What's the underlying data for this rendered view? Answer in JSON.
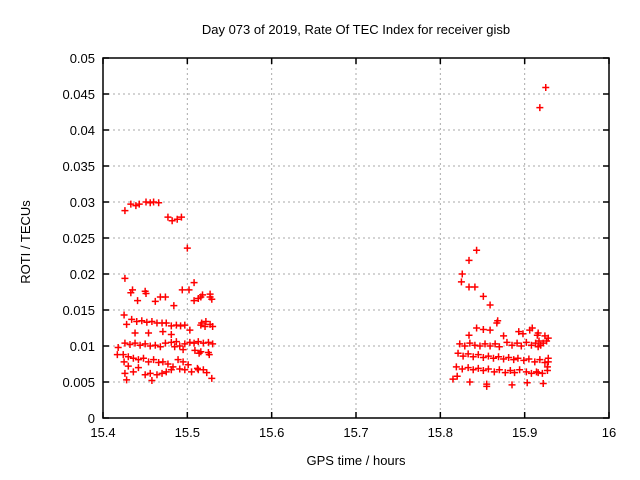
{
  "chart_data": {
    "type": "scatter",
    "title": "Day 073 of 2019, Rate Of TEC Index for receiver gisb",
    "xlabel": "GPS time / hours",
    "ylabel": "ROTI / TECUs",
    "xlim": [
      15.4,
      16
    ],
    "ylim": [
      0,
      0.05
    ],
    "xtick_values": [
      15.4,
      15.5,
      15.6,
      15.7,
      15.8,
      15.9,
      16
    ],
    "xtick_labels": [
      "15.4",
      "15.5",
      "15.6",
      "15.7",
      "15.8",
      "15.9",
      "16"
    ],
    "ytick_values": [
      0,
      0.005,
      0.01,
      0.015,
      0.02,
      0.025,
      0.03,
      0.035,
      0.04,
      0.045,
      0.05
    ],
    "ytick_labels": [
      "0",
      "0.005",
      "0.01",
      "0.015",
      "0.02",
      "0.025",
      "0.03",
      "0.035",
      "0.04",
      "0.045",
      "0.05"
    ],
    "grid": true,
    "legend": "none",
    "marker": "plus",
    "series": [
      {
        "name": "ROTI",
        "color": "#ff0000",
        "points": [
          [
            15.426,
            0.0288
          ],
          [
            15.433,
            0.0297
          ],
          [
            15.439,
            0.0295
          ],
          [
            15.443,
            0.0297
          ],
          [
            15.451,
            0.03
          ],
          [
            15.456,
            0.0299
          ],
          [
            15.46,
            0.03
          ],
          [
            15.466,
            0.0299
          ],
          [
            15.477,
            0.0279
          ],
          [
            15.482,
            0.0274
          ],
          [
            15.488,
            0.0276
          ],
          [
            15.493,
            0.0279
          ],
          [
            15.5,
            0.0236
          ],
          [
            15.426,
            0.0194
          ],
          [
            15.508,
            0.0188
          ],
          [
            15.433,
            0.0174
          ],
          [
            15.435,
            0.0178
          ],
          [
            15.45,
            0.0176
          ],
          [
            15.451,
            0.0173
          ],
          [
            15.468,
            0.0168
          ],
          [
            15.474,
            0.0168
          ],
          [
            15.494,
            0.0178
          ],
          [
            15.502,
            0.0178
          ],
          [
            15.518,
            0.0171
          ],
          [
            15.527,
            0.0168
          ],
          [
            15.527,
            0.0172
          ],
          [
            15.441,
            0.0163
          ],
          [
            15.462,
            0.0162
          ],
          [
            15.484,
            0.0156
          ],
          [
            15.508,
            0.0163
          ],
          [
            15.513,
            0.0166
          ],
          [
            15.516,
            0.0168
          ],
          [
            15.529,
            0.0165
          ],
          [
            15.425,
            0.0143
          ],
          [
            15.434,
            0.0137
          ],
          [
            15.44,
            0.0134
          ],
          [
            15.446,
            0.0135
          ],
          [
            15.452,
            0.0133
          ],
          [
            15.458,
            0.0134
          ],
          [
            15.464,
            0.0132
          ],
          [
            15.47,
            0.0132
          ],
          [
            15.475,
            0.0132
          ],
          [
            15.428,
            0.013
          ],
          [
            15.481,
            0.0128
          ],
          [
            15.487,
            0.0129
          ],
          [
            15.492,
            0.0128
          ],
          [
            15.497,
            0.0129
          ],
          [
            15.503,
            0.0122
          ],
          [
            15.517,
            0.0132
          ],
          [
            15.522,
            0.0134
          ],
          [
            15.527,
            0.013
          ],
          [
            15.53,
            0.0127
          ],
          [
            15.521,
            0.0127
          ],
          [
            15.516,
            0.0129
          ],
          [
            15.438,
            0.0118
          ],
          [
            15.454,
            0.0118
          ],
          [
            15.471,
            0.012
          ],
          [
            15.481,
            0.0116
          ],
          [
            15.418,
            0.0098
          ],
          [
            15.426,
            0.0104
          ],
          [
            15.432,
            0.0102
          ],
          [
            15.438,
            0.0104
          ],
          [
            15.444,
            0.0101
          ],
          [
            15.45,
            0.0103
          ],
          [
            15.456,
            0.01
          ],
          [
            15.462,
            0.0101
          ],
          [
            15.468,
            0.0099
          ],
          [
            15.474,
            0.0104
          ],
          [
            15.481,
            0.0105
          ],
          [
            15.487,
            0.0106
          ],
          [
            15.485,
            0.0099
          ],
          [
            15.491,
            0.01
          ],
          [
            15.497,
            0.0103
          ],
          [
            15.503,
            0.0105
          ],
          [
            15.508,
            0.0104
          ],
          [
            15.513,
            0.0106
          ],
          [
            15.519,
            0.0104
          ],
          [
            15.525,
            0.0105
          ],
          [
            15.53,
            0.0103
          ],
          [
            15.495,
            0.0095
          ],
          [
            15.509,
            0.0094
          ],
          [
            15.516,
            0.0092
          ],
          [
            15.525,
            0.0091
          ],
          [
            15.514,
            0.009
          ],
          [
            15.417,
            0.0088
          ],
          [
            15.424,
            0.0088
          ],
          [
            15.43,
            0.0085
          ],
          [
            15.425,
            0.0078
          ],
          [
            15.436,
            0.0083
          ],
          [
            15.442,
            0.0081
          ],
          [
            15.448,
            0.0083
          ],
          [
            15.454,
            0.0078
          ],
          [
            15.46,
            0.0081
          ],
          [
            15.466,
            0.0077
          ],
          [
            15.471,
            0.0078
          ],
          [
            15.477,
            0.0075
          ],
          [
            15.43,
            0.0072
          ],
          [
            15.442,
            0.007
          ],
          [
            15.489,
            0.0081
          ],
          [
            15.495,
            0.0078
          ],
          [
            15.501,
            0.0074
          ],
          [
            15.483,
            0.0071
          ],
          [
            15.526,
            0.0088
          ],
          [
            15.512,
            0.0069
          ],
          [
            15.519,
            0.0067
          ],
          [
            15.426,
            0.0062
          ],
          [
            15.436,
            0.0064
          ],
          [
            15.45,
            0.006
          ],
          [
            15.456,
            0.0062
          ],
          [
            15.464,
            0.006
          ],
          [
            15.47,
            0.0062
          ],
          [
            15.475,
            0.0064
          ],
          [
            15.481,
            0.0067
          ],
          [
            15.491,
            0.0068
          ],
          [
            15.497,
            0.0067
          ],
          [
            15.505,
            0.0064
          ],
          [
            15.513,
            0.0067
          ],
          [
            15.523,
            0.0063
          ],
          [
            15.529,
            0.0055
          ],
          [
            15.428,
            0.0053
          ],
          [
            15.458,
            0.0052
          ],
          [
            15.843,
            0.0233
          ],
          [
            15.834,
            0.0219
          ],
          [
            15.826,
            0.02
          ],
          [
            15.825,
            0.0189
          ],
          [
            15.834,
            0.0182
          ],
          [
            15.841,
            0.0182
          ],
          [
            15.851,
            0.0169
          ],
          [
            15.859,
            0.0157
          ],
          [
            15.868,
            0.0135
          ],
          [
            15.909,
            0.0125
          ],
          [
            15.867,
            0.0132
          ],
          [
            15.843,
            0.0125
          ],
          [
            15.851,
            0.0123
          ],
          [
            15.834,
            0.0115
          ],
          [
            15.859,
            0.0122
          ],
          [
            15.875,
            0.0114
          ],
          [
            15.893,
            0.012
          ],
          [
            15.898,
            0.0117
          ],
          [
            15.906,
            0.0122
          ],
          [
            15.915,
            0.0115
          ],
          [
            15.924,
            0.0114
          ],
          [
            15.928,
            0.0111
          ],
          [
            15.926,
            0.0107
          ],
          [
            15.916,
            0.0118
          ],
          [
            15.917,
            0.0107
          ],
          [
            15.823,
            0.0103
          ],
          [
            15.829,
            0.01
          ],
          [
            15.835,
            0.0104
          ],
          [
            15.841,
            0.0101
          ],
          [
            15.847,
            0.01
          ],
          [
            15.853,
            0.0103
          ],
          [
            15.859,
            0.01
          ],
          [
            15.865,
            0.0103
          ],
          [
            15.87,
            0.0099
          ],
          [
            15.879,
            0.0105
          ],
          [
            15.885,
            0.0101
          ],
          [
            15.891,
            0.0104
          ],
          [
            15.896,
            0.01
          ],
          [
            15.902,
            0.0105
          ],
          [
            15.908,
            0.0101
          ],
          [
            15.913,
            0.0104
          ],
          [
            15.919,
            0.0101
          ],
          [
            15.922,
            0.0104
          ],
          [
            15.916,
            0.0099
          ],
          [
            15.821,
            0.009
          ],
          [
            15.827,
            0.0086
          ],
          [
            15.833,
            0.0089
          ],
          [
            15.839,
            0.0085
          ],
          [
            15.845,
            0.0088
          ],
          [
            15.851,
            0.0084
          ],
          [
            15.857,
            0.0086
          ],
          [
            15.863,
            0.0083
          ],
          [
            15.869,
            0.0085
          ],
          [
            15.875,
            0.0082
          ],
          [
            15.881,
            0.0084
          ],
          [
            15.887,
            0.0081
          ],
          [
            15.892,
            0.0083
          ],
          [
            15.899,
            0.008
          ],
          [
            15.905,
            0.0082
          ],
          [
            15.912,
            0.0078
          ],
          [
            15.918,
            0.0081
          ],
          [
            15.924,
            0.0077
          ],
          [
            15.928,
            0.0083
          ],
          [
            15.928,
            0.0078
          ],
          [
            15.819,
            0.0071
          ],
          [
            15.826,
            0.0068
          ],
          [
            15.833,
            0.007
          ],
          [
            15.839,
            0.0067
          ],
          [
            15.845,
            0.0069
          ],
          [
            15.851,
            0.0066
          ],
          [
            15.857,
            0.0068
          ],
          [
            15.864,
            0.0064
          ],
          [
            15.87,
            0.0067
          ],
          [
            15.877,
            0.0063
          ],
          [
            15.883,
            0.0066
          ],
          [
            15.888,
            0.0063
          ],
          [
            15.894,
            0.0067
          ],
          [
            15.902,
            0.0064
          ],
          [
            15.908,
            0.0062
          ],
          [
            15.914,
            0.0064
          ],
          [
            15.921,
            0.0062
          ],
          [
            15.927,
            0.0066
          ],
          [
            15.927,
            0.0071
          ],
          [
            15.916,
            0.0063
          ],
          [
            15.815,
            0.0054
          ],
          [
            15.82,
            0.0058
          ],
          [
            15.835,
            0.005
          ],
          [
            15.855,
            0.0047
          ],
          [
            15.885,
            0.0046
          ],
          [
            15.903,
            0.0049
          ],
          [
            15.922,
            0.0048
          ],
          [
            15.855,
            0.0044
          ],
          [
            15.918,
            0.0431
          ],
          [
            15.925,
            0.0459
          ]
        ]
      }
    ]
  },
  "colors": {
    "marker": "#ff0000",
    "grid": "#aaaaaa",
    "axis": "#000000",
    "background": "#ffffff",
    "text": "#000000"
  }
}
